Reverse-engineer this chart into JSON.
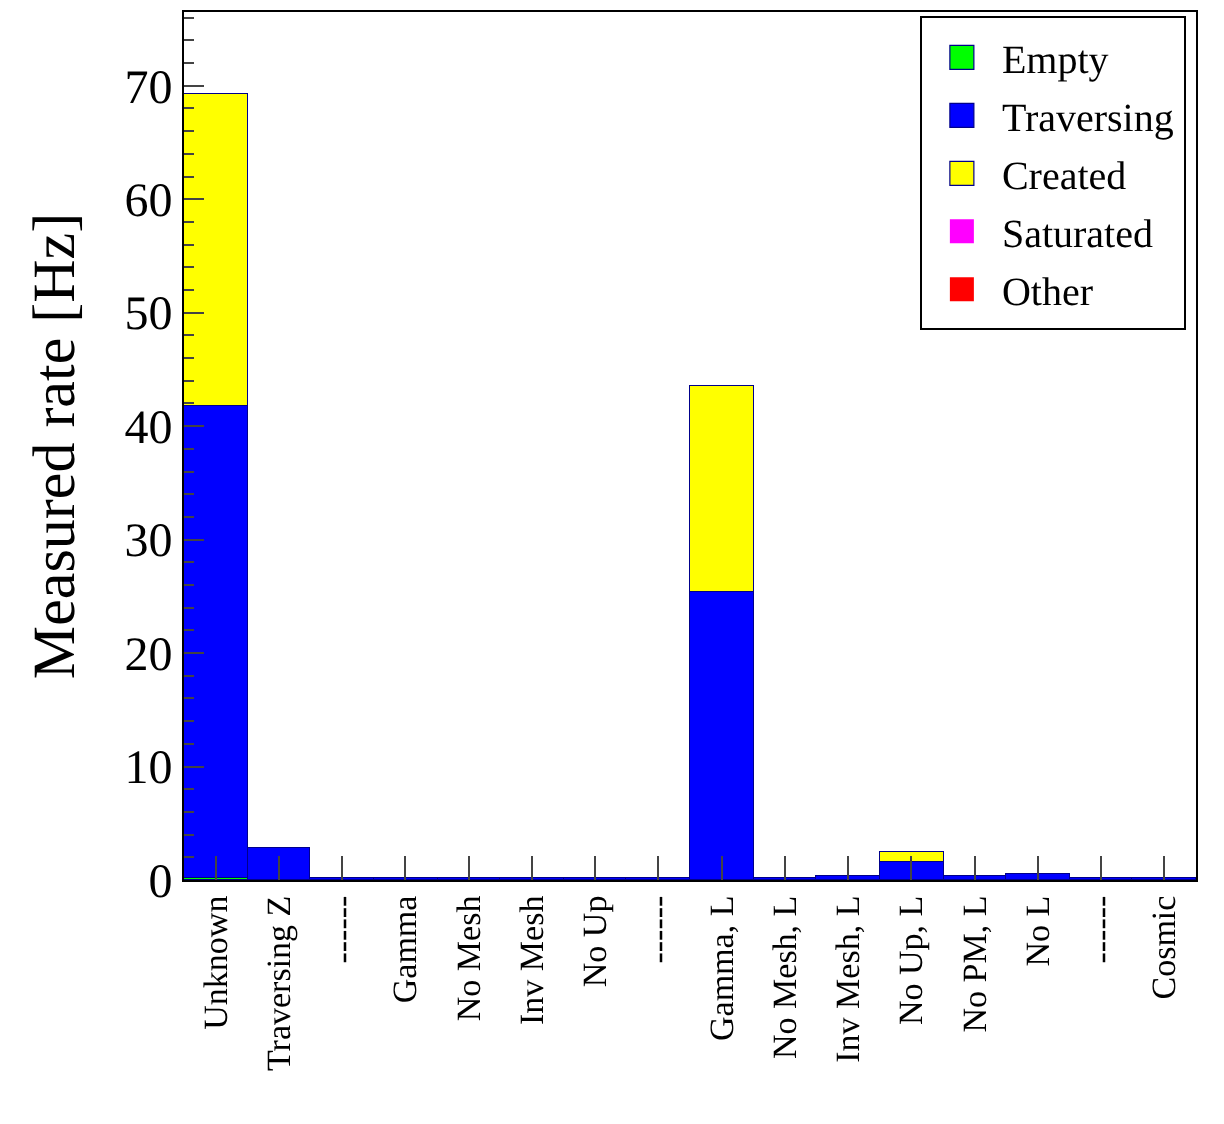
{
  "chart_data": {
    "type": "bar",
    "stacked": true,
    "ylabel": "Measured rate [Hz]",
    "categories": [
      "Unknown",
      "Traversing Z",
      "------",
      "Gamma",
      "No Mesh",
      "Inv Mesh",
      "No Up",
      "------",
      "Gamma, L",
      "No Mesh, L",
      "Inv Mesh, L",
      "No Up, L",
      "No PM, L",
      "No L",
      "------",
      "Cosmic"
    ],
    "series": [
      {
        "name": "Empty",
        "color": "#00ff00",
        "values": [
          0.2,
          0,
          0,
          0,
          0,
          0,
          0,
          0,
          0,
          0,
          0,
          0,
          0,
          0,
          0,
          0
        ]
      },
      {
        "name": "Traversing",
        "color": "#0000ff",
        "values": [
          41.6,
          2.8,
          0.1,
          0.1,
          0.1,
          0.1,
          0.1,
          0.1,
          25.3,
          0.2,
          0.4,
          1.6,
          0.4,
          0.5,
          0.1,
          0.1
        ]
      },
      {
        "name": "Created",
        "color": "#ffff00",
        "values": [
          27.5,
          0,
          0,
          0,
          0,
          0,
          0,
          0,
          18.3,
          0,
          0,
          0.8,
          0,
          0,
          0,
          0
        ]
      },
      {
        "name": "Saturated",
        "color": "#ff00ff",
        "values": [
          0,
          0,
          0,
          0,
          0,
          0,
          0,
          0,
          0,
          0,
          0,
          0,
          0,
          0,
          0,
          0
        ]
      },
      {
        "name": "Other",
        "color": "#ff0000",
        "values": [
          0,
          0,
          0,
          0,
          0,
          0,
          0,
          0,
          0,
          0,
          0,
          0,
          0,
          0,
          0,
          0
        ]
      }
    ],
    "ylim": [
      0,
      76.5
    ],
    "yticks": [
      0,
      10,
      20,
      30,
      40,
      50,
      60,
      70
    ],
    "legend": "top right"
  }
}
